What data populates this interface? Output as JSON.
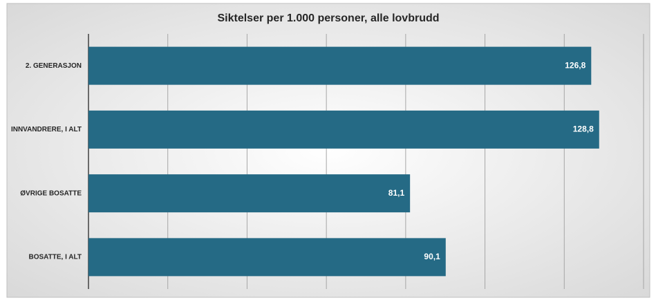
{
  "chart_data": {
    "type": "hbar",
    "title": "Siktelser per 1.000 personer, alle lovbrudd",
    "categories": [
      "2. GENERASJON",
      "INNVANDRERE, I ALT",
      "ØVRIGE BOSATTE",
      "BOSATTE, I ALT"
    ],
    "values": [
      126.8,
      128.8,
      81.1,
      90.1
    ],
    "value_labels": [
      "126,8",
      "128,8",
      "81,1",
      "90,1"
    ],
    "color": "#256a85",
    "xlim": [
      0,
      140
    ],
    "xticks": [
      0,
      20,
      40,
      60,
      80,
      100,
      120,
      140
    ],
    "grid": true
  }
}
